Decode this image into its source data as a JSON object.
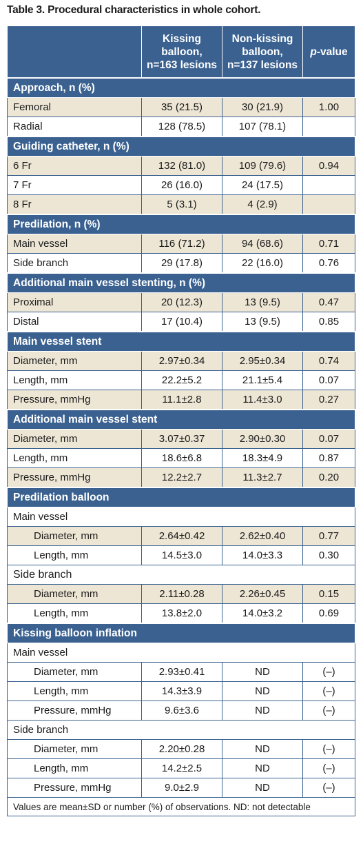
{
  "title": "Table 3. Procedural characteristics in whole cohort.",
  "header": {
    "col1": "",
    "col2": [
      "Kissing",
      "balloon,",
      "n=163 lesions"
    ],
    "col3": [
      "Non-kissing",
      "balloon,",
      "n=137 lesions"
    ],
    "col4_italic": "p",
    "col4_rest": "-value"
  },
  "sections": [
    {
      "title": "Approach, n (%)",
      "rows": [
        {
          "label": "Femoral",
          "k": "35 (21.5)",
          "nk": "30 (21.9)",
          "p": "1.00"
        },
        {
          "label": "Radial",
          "k": "128 (78.5)",
          "nk": "107 (78.1)",
          "p": ""
        }
      ]
    },
    {
      "title": "Guiding catheter, n (%)",
      "rows": [
        {
          "label": "6 Fr",
          "k": "132 (81.0)",
          "nk": "109 (79.6)",
          "p": "0.94"
        },
        {
          "label": "7 Fr",
          "k": "26 (16.0)",
          "nk": "24 (17.5)",
          "p": ""
        },
        {
          "label": "8 Fr",
          "k": "5 (3.1)",
          "nk": "4 (2.9)",
          "p": ""
        }
      ]
    },
    {
      "title": "Predilation, n (%)",
      "rows": [
        {
          "label": "Main vessel",
          "k": "116 (71.2)",
          "nk": "94 (68.6)",
          "p": "0.71"
        },
        {
          "label": "Side branch",
          "k": "29 (17.8)",
          "nk": "22 (16.0)",
          "p": "0.76"
        }
      ]
    },
    {
      "title": "Additional main vessel stenting, n (%)",
      "rows": [
        {
          "label": "Proximal",
          "k": "20 (12.3)",
          "nk": "13 (9.5)",
          "p": "0.47"
        },
        {
          "label": "Distal",
          "k": "17 (10.4)",
          "nk": "13 (9.5)",
          "p": "0.85"
        }
      ]
    },
    {
      "title": "Main vessel stent",
      "rows": [
        {
          "label": "Diameter, mm",
          "k": "2.97±0.34",
          "nk": "2.95±0.34",
          "p": "0.74"
        },
        {
          "label": "Length, mm",
          "k": "22.2±5.2",
          "nk": "21.1±5.4",
          "p": "0.07"
        },
        {
          "label": "Pressure, mmHg",
          "k": "11.1±2.8",
          "nk": "11.4±3.0",
          "p": "0.27"
        }
      ]
    },
    {
      "title": "Additional main vessel stent",
      "rows": [
        {
          "label": "Diameter, mm",
          "k": "3.07±0.37",
          "nk": "2.90±0.30",
          "p": "0.07"
        },
        {
          "label": "Length, mm",
          "k": "18.6±6.8",
          "nk": "18.3±4.9",
          "p": "0.87"
        },
        {
          "label": "Pressure, mmHg",
          "k": "12.2±2.7",
          "nk": "11.3±2.7",
          "p": "0.20"
        }
      ]
    }
  ],
  "predilation_balloon": {
    "title": "Predilation balloon",
    "main_vessel": {
      "label": "Main vessel",
      "rows": [
        {
          "label": "Diameter, mm",
          "k": "2.64±0.42",
          "nk": "2.62±0.40",
          "p": "0.77"
        },
        {
          "label": "Length, mm",
          "k": "14.5±3.0",
          "nk": "14.0±3.3",
          "p": "0.30"
        }
      ]
    },
    "side_branch": {
      "label": "Side branch",
      "rows": [
        {
          "label": "Diameter, mm",
          "k": "2.11±0.28",
          "nk": "2.26±0.45",
          "p": "0.15"
        },
        {
          "label": "Length, mm",
          "k": "13.8±2.0",
          "nk": "14.0±3.2",
          "p": "0.69"
        }
      ]
    }
  },
  "kissing_balloon": {
    "title": "Kissing balloon inflation",
    "main_vessel": {
      "label": "Main vessel",
      "rows": [
        {
          "label": "Diameter, mm",
          "k": "2.93±0.41",
          "nk": "ND",
          "p": "(–)"
        },
        {
          "label": "Length, mm",
          "k": "14.3±3.9",
          "nk": "ND",
          "p": "(–)"
        },
        {
          "label": "Pressure, mmHg",
          "k": "9.6±3.6",
          "nk": "ND",
          "p": "(–)"
        }
      ]
    },
    "side_branch": {
      "label": "Side branch",
      "rows": [
        {
          "label": "Diameter, mm",
          "k": "2.20±0.28",
          "nk": "ND",
          "p": "(–)"
        },
        {
          "label": "Length, mm",
          "k": "14.2±2.5",
          "nk": "ND",
          "p": "(–)"
        },
        {
          "label": "Pressure, mmHg",
          "k": "9.0±2.9",
          "nk": "ND",
          "p": "(–)"
        }
      ]
    }
  },
  "footnote": "Values are mean±SD or number (%) of observations. ND: not detectable",
  "colors": {
    "header_blue": "#3a6190",
    "shade_beige": "#ede6d5"
  }
}
